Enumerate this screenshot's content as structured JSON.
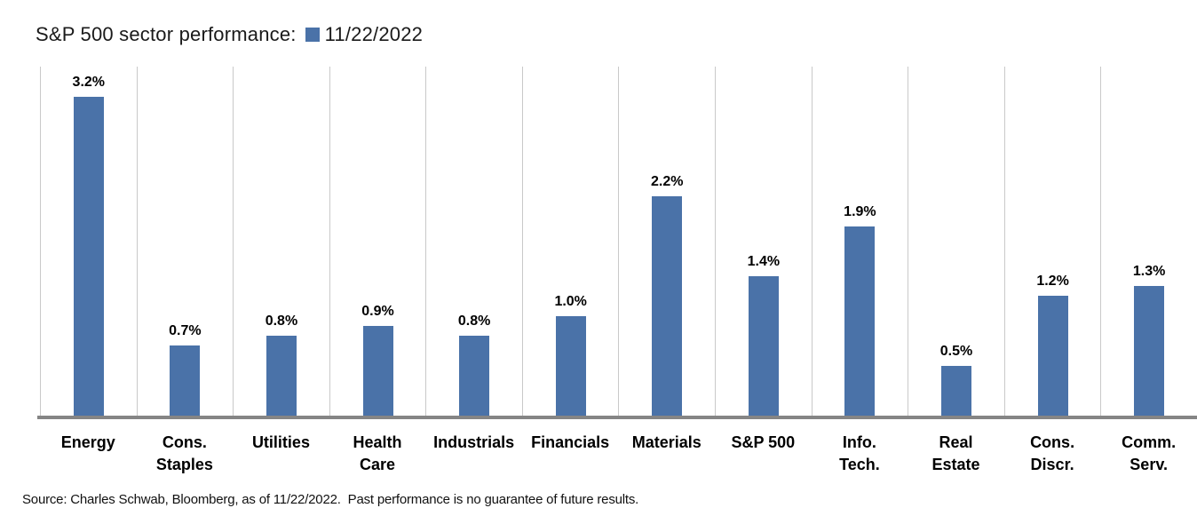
{
  "header": {
    "title": "S&P 500 sector performance:",
    "legend": {
      "swatch_color": "#4A72A8",
      "label": "11/22/2022"
    }
  },
  "source_note": "Source: Charles Schwab, Bloomberg, as of 11/22/2022.  Past performance is no guarantee of future results.",
  "colors": {
    "bar": "#4A72A8",
    "gridline": "#C9C9C9",
    "baseline": "#858585",
    "text": "#000000"
  },
  "chart_data": {
    "type": "bar",
    "title": "S&P 500 sector performance",
    "series_name": "11/22/2022",
    "categories": [
      "Energy",
      "Cons. Staples",
      "Utilities",
      "Health Care",
      "Industrials",
      "Financials",
      "Materials",
      "S&P 500",
      "Info. Tech.",
      "Real Estate",
      "Cons. Discr.",
      "Comm. Serv."
    ],
    "category_label_lines": [
      "Energy",
      "Cons.\nStaples",
      "Utilities",
      "Health\nCare",
      "Industrials",
      "Financials",
      "Materials",
      "S&P 500",
      "Info.\nTech.",
      "Real\nEstate",
      "Cons.\nDiscr.",
      "Comm.\nServ."
    ],
    "values": [
      3.2,
      0.7,
      0.8,
      0.9,
      0.8,
      1.0,
      2.2,
      1.4,
      1.9,
      0.5,
      1.2,
      1.3
    ],
    "value_labels": [
      "3.2%",
      "0.7%",
      "0.8%",
      "0.9%",
      "0.8%",
      "1.0%",
      "2.2%",
      "1.4%",
      "1.9%",
      "0.5%",
      "1.2%",
      "1.3%"
    ],
    "unit": "%",
    "xlabel": "",
    "ylabel": "",
    "ylim": [
      0,
      3.5
    ],
    "grid": "vertical category separators only",
    "legend_position": "top, inline with title"
  }
}
